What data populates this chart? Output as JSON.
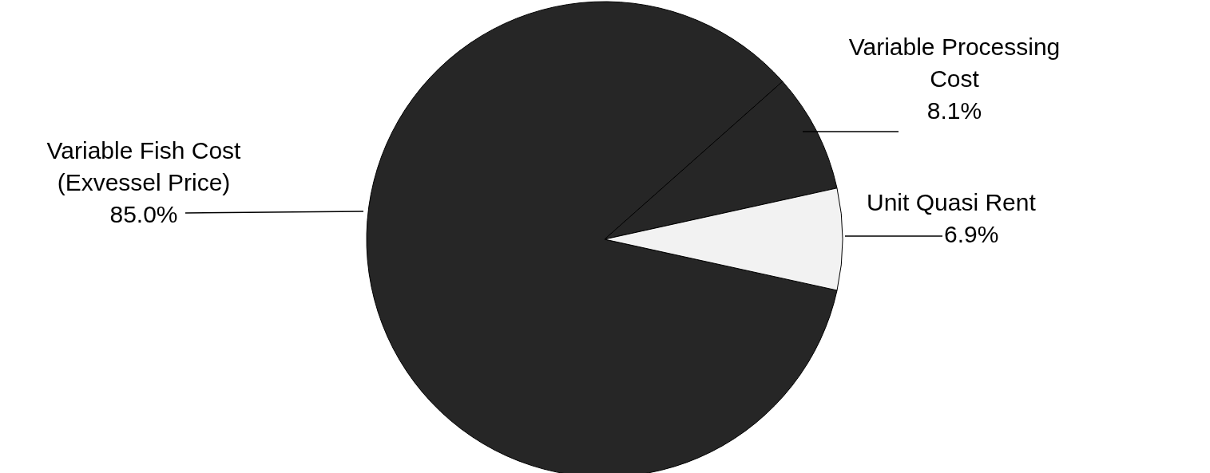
{
  "chart_data": {
    "type": "pie",
    "categories": [
      "Variable Fish Cost (Exvessel Price)",
      "Variable Processing Cost",
      "Unit Quasi Rent"
    ],
    "values": [
      85.0,
      8.1,
      6.9
    ],
    "colors": [
      "#262626",
      "#262626",
      "#f2f2f2"
    ],
    "value_labels": [
      "85.0%",
      "8.1%",
      "6.9%"
    ]
  }
}
